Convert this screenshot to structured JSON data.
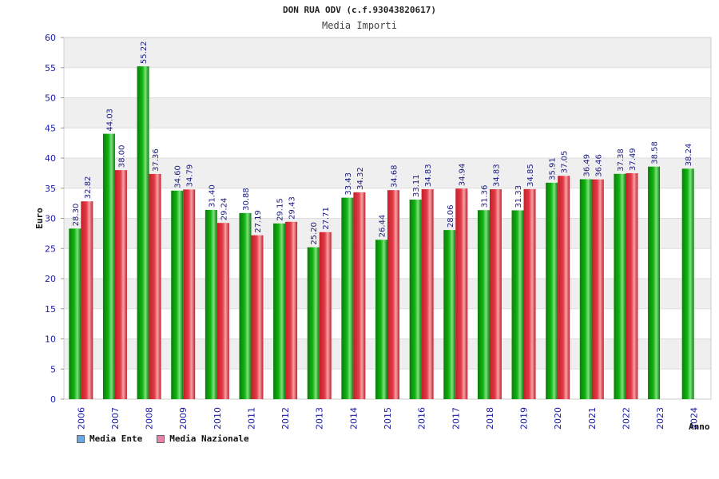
{
  "title": "DON RUA ODV (c.f.93043820617)",
  "subtitle": "Media Importi",
  "colors": {
    "ente": "#12b312",
    "nazionale": "#e33a45",
    "legend_ente": "#6aa9e6",
    "legend_nazionale": "#e683a8",
    "axis_text": "#1a1aa8",
    "grid_band": "#efefef"
  },
  "legend": {
    "ente": "Media Ente",
    "nazionale": "Media Nazionale"
  },
  "chart_data": {
    "type": "bar",
    "xlabel": "Anno",
    "ylabel": "Euro",
    "ylim": [
      0,
      60
    ],
    "yticks": [
      0,
      5,
      10,
      15,
      20,
      25,
      30,
      35,
      40,
      45,
      50,
      55,
      60
    ],
    "categories": [
      "2006",
      "2007",
      "2008",
      "2009",
      "2010",
      "2011",
      "2012",
      "2013",
      "2014",
      "2015",
      "2016",
      "2017",
      "2018",
      "2019",
      "2020",
      "2021",
      "2022",
      "2023",
      "2024"
    ],
    "series": [
      {
        "name": "Media Ente",
        "values": [
          28.3,
          44.03,
          55.22,
          34.6,
          31.4,
          30.88,
          29.15,
          25.2,
          33.43,
          26.44,
          33.11,
          28.06,
          31.36,
          31.33,
          35.91,
          36.49,
          37.38,
          38.58,
          38.24
        ],
        "labels": [
          "28.30",
          "44.03",
          "55.22",
          "34.60",
          "31.40",
          "30.88",
          "29.15",
          "25.20",
          "33.43",
          "26.44",
          "33.11",
          "28.06",
          "31.36",
          "31.33",
          "35.91",
          "36.49",
          "37.38",
          "38.58",
          "38.24"
        ]
      },
      {
        "name": "Media Nazionale",
        "values": [
          32.82,
          38.0,
          37.36,
          34.79,
          29.24,
          27.19,
          29.43,
          27.71,
          34.32,
          34.68,
          34.83,
          34.94,
          34.83,
          34.85,
          37.05,
          36.46,
          37.49,
          null,
          null
        ],
        "labels": [
          "32.82",
          "38.00",
          "37.36",
          "34.79",
          "29.24",
          "27.19",
          "29.43",
          "27.71",
          "34.32",
          "34.68",
          "34.83",
          "34.94",
          "34.83",
          "34.85",
          "37.05",
          "36.46",
          "37.49",
          "",
          ""
        ]
      }
    ]
  }
}
